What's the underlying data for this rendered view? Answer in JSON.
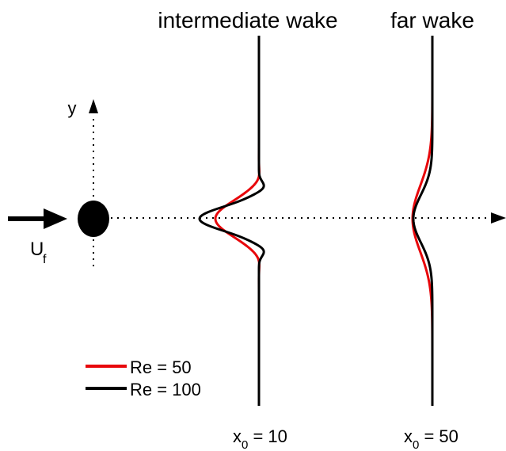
{
  "labels": {
    "intermediate_wake": "intermediate wake",
    "far_wake": "far wake",
    "y_axis": "y",
    "freestream_main": "U",
    "freestream_sub": "f",
    "station_intermediate_main": "x",
    "station_intermediate_sub": "0",
    "station_intermediate_value": " = 10",
    "station_far_main": "x",
    "station_far_sub": "0",
    "station_far_value": " = 50"
  },
  "legend": {
    "entries": [
      {
        "label": "Re = 50",
        "color": "#e8070b"
      },
      {
        "label": "Re = 100",
        "color": "#000000"
      }
    ]
  },
  "colors": {
    "re50": "#e8070b",
    "re100": "#000000",
    "axes": "#000000",
    "cylinder": "#000000"
  },
  "icons": {
    "cylinder": "filled-ellipse",
    "freestream_arrow": "arrow-right"
  }
}
